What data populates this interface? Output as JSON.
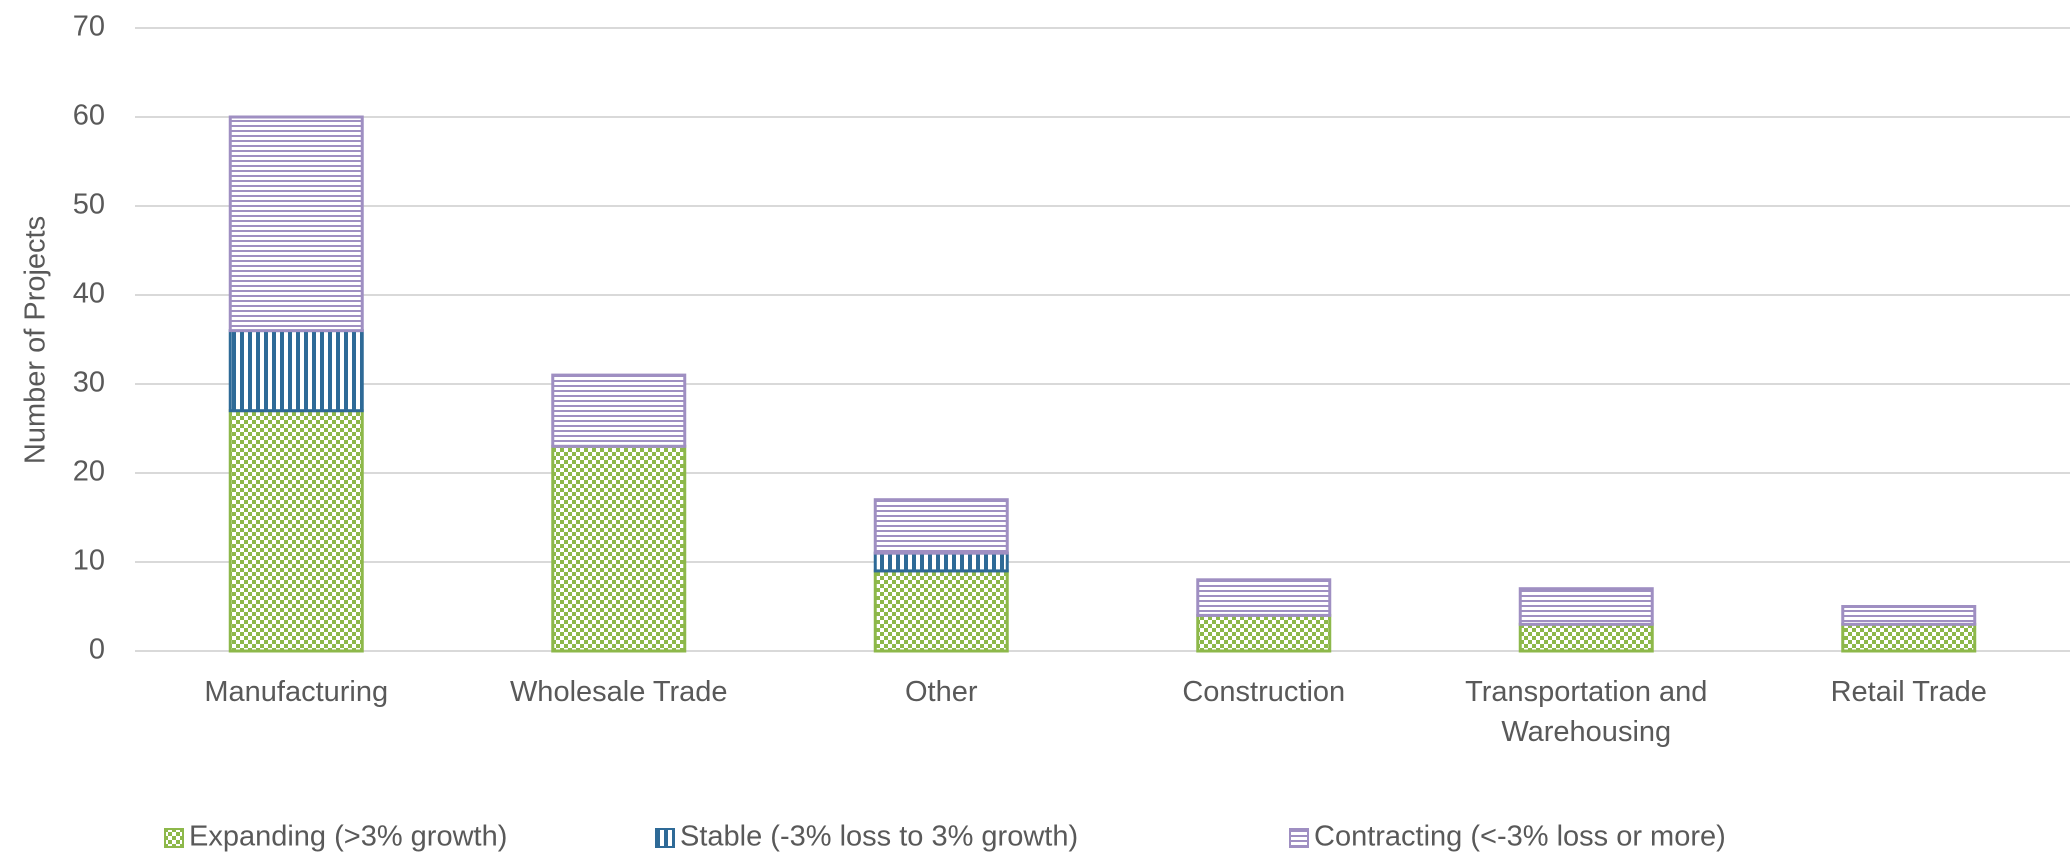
{
  "chart_data": {
    "type": "stacked_bar",
    "y_label": "Number of Projects",
    "categories": [
      "Manufacturing",
      "Wholesale Trade",
      "Other",
      "Construction",
      "Transportation and Warehousing",
      "Retail Trade"
    ],
    "series": [
      {
        "name": "Expanding (>3% growth)",
        "color": "#8db84a",
        "values": [
          27,
          23,
          9,
          4,
          3,
          3
        ]
      },
      {
        "name": "Stable (-3% loss to 3% growth)",
        "color": "#2e6a97",
        "values": [
          9,
          0,
          2,
          0,
          0,
          0
        ]
      },
      {
        "name": "Contracting (<-3% loss or more)",
        "color": "#9f8fc2",
        "values": [
          24,
          8,
          6,
          4,
          4,
          2
        ]
      }
    ],
    "ylim": [
      0,
      70
    ],
    "yticks": [
      0,
      10,
      20,
      30,
      40,
      50,
      60,
      70
    ],
    "grid": true,
    "legend": "bottom"
  }
}
